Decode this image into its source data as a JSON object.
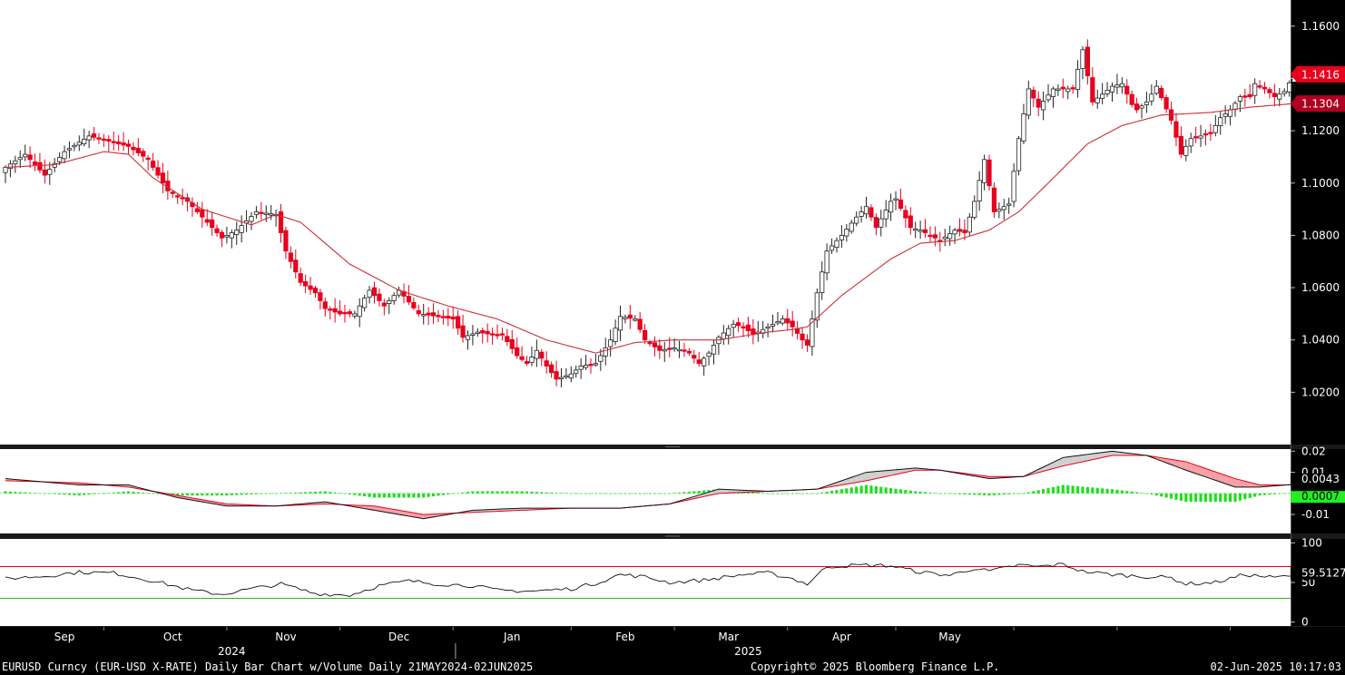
{
  "chart_data": [
    {
      "panel": "price",
      "type": "candlestick",
      "title": "",
      "ylim": [
        1.0,
        1.17
      ],
      "yticks": [
        "1.1600",
        "1.1400",
        "1.1200",
        "1.1000",
        "1.0800",
        "1.0600",
        "1.0400",
        "1.0200"
      ],
      "ytick_values": [
        1.16,
        1.14,
        1.12,
        1.1,
        1.08,
        1.06,
        1.04,
        1.02
      ],
      "grid": false,
      "candle_color": "#e8001c",
      "ma_color": "#c8303a",
      "price_anchors": [
        [
          0,
          1.106
        ],
        [
          4,
          1.111
        ],
        [
          8,
          1.103
        ],
        [
          12,
          1.112
        ],
        [
          17,
          1.118
        ],
        [
          21,
          1.116
        ],
        [
          25,
          1.114
        ],
        [
          29,
          1.109
        ],
        [
          33,
          1.097
        ],
        [
          37,
          1.093
        ],
        [
          40,
          1.087
        ],
        [
          44,
          1.079
        ],
        [
          47,
          1.082
        ],
        [
          51,
          1.089
        ],
        [
          55,
          1.088
        ],
        [
          57,
          1.074
        ],
        [
          60,
          1.062
        ],
        [
          63,
          1.058
        ],
        [
          65,
          1.052
        ],
        [
          68,
          1.05
        ],
        [
          71,
          1.05
        ],
        [
          74,
          1.059
        ],
        [
          77,
          1.053
        ],
        [
          80,
          1.059
        ],
        [
          84,
          1.05
        ],
        [
          88,
          1.049
        ],
        [
          91,
          1.048
        ],
        [
          93,
          1.041
        ],
        [
          96,
          1.043
        ],
        [
          99,
          1.042
        ],
        [
          101,
          1.042
        ],
        [
          104,
          1.034
        ],
        [
          106,
          1.031
        ],
        [
          108,
          1.036
        ],
        [
          110,
          1.03
        ],
        [
          112,
          1.025
        ],
        [
          115,
          1.027
        ],
        [
          117,
          1.03
        ],
        [
          120,
          1.031
        ],
        [
          123,
          1.04
        ],
        [
          125,
          1.049
        ],
        [
          128,
          1.048
        ],
        [
          130,
          1.04
        ],
        [
          133,
          1.036
        ],
        [
          136,
          1.037
        ],
        [
          139,
          1.035
        ],
        [
          141,
          1.031
        ],
        [
          143,
          1.035
        ],
        [
          145,
          1.041
        ],
        [
          148,
          1.046
        ],
        [
          150,
          1.045
        ],
        [
          152,
          1.042
        ],
        [
          155,
          1.045
        ],
        [
          158,
          1.048
        ],
        [
          160,
          1.045
        ],
        [
          162,
          1.04
        ],
        [
          163,
          1.038
        ],
        [
          165,
          1.058
        ],
        [
          167,
          1.074
        ],
        [
          170,
          1.08
        ],
        [
          173,
          1.087
        ],
        [
          175,
          1.091
        ],
        [
          177,
          1.083
        ],
        [
          180,
          1.093
        ],
        [
          181,
          1.094
        ],
        [
          184,
          1.083
        ],
        [
          186,
          1.082
        ],
        [
          188,
          1.08
        ],
        [
          190,
          1.078
        ],
        [
          193,
          1.082
        ],
        [
          195,
          1.081
        ],
        [
          197,
          1.093
        ],
        [
          199,
          1.109
        ],
        [
          201,
          1.089
        ],
        [
          204,
          1.092
        ],
        [
          206,
          1.117
        ],
        [
          208,
          1.136
        ],
        [
          210,
          1.129
        ],
        [
          213,
          1.136
        ],
        [
          215,
          1.136
        ],
        [
          217,
          1.136
        ],
        [
          219,
          1.151
        ],
        [
          221,
          1.131
        ],
        [
          223,
          1.134
        ],
        [
          225,
          1.137
        ],
        [
          227,
          1.138
        ],
        [
          229,
          1.13
        ],
        [
          230,
          1.128
        ],
        [
          232,
          1.131
        ],
        [
          234,
          1.137
        ],
        [
          237,
          1.124
        ],
        [
          239,
          1.111
        ],
        [
          241,
          1.117
        ],
        [
          243,
          1.118
        ],
        [
          245,
          1.119
        ],
        [
          247,
          1.125
        ],
        [
          249,
          1.128
        ],
        [
          251,
          1.133
        ],
        [
          253,
          1.133
        ],
        [
          254,
          1.138
        ],
        [
          256,
          1.136
        ],
        [
          258,
          1.133
        ],
        [
          260,
          1.135
        ],
        [
          262,
          1.1416
        ]
      ],
      "moving_average_anchors": [
        [
          0,
          1.106
        ],
        [
          10,
          1.107
        ],
        [
          20,
          1.112
        ],
        [
          25,
          1.111
        ],
        [
          30,
          1.102
        ],
        [
          40,
          1.09
        ],
        [
          50,
          1.084
        ],
        [
          55,
          1.088
        ],
        [
          60,
          1.085
        ],
        [
          70,
          1.069
        ],
        [
          80,
          1.059
        ],
        [
          90,
          1.053
        ],
        [
          100,
          1.048
        ],
        [
          110,
          1.04
        ],
        [
          120,
          1.035
        ],
        [
          128,
          1.039
        ],
        [
          136,
          1.04
        ],
        [
          145,
          1.04
        ],
        [
          155,
          1.043
        ],
        [
          160,
          1.044
        ],
        [
          163,
          1.045
        ],
        [
          170,
          1.057
        ],
        [
          180,
          1.071
        ],
        [
          186,
          1.077
        ],
        [
          193,
          1.078
        ],
        [
          200,
          1.082
        ],
        [
          206,
          1.089
        ],
        [
          212,
          1.1
        ],
        [
          220,
          1.115
        ],
        [
          227,
          1.122
        ],
        [
          235,
          1.126
        ],
        [
          245,
          1.127
        ],
        [
          253,
          1.129
        ],
        [
          262,
          1.1304
        ]
      ],
      "last_price_label": "1.1416",
      "last_price_color": "#e8001c",
      "ma_value_label": "1.1304",
      "ma_value_color": "#b00020"
    },
    {
      "panel": "macd",
      "type": "line+histogram",
      "ylim": [
        -0.019,
        0.021
      ],
      "yticks": [
        "0.02",
        "0.01",
        "-0.01"
      ],
      "ytick_values": [
        0.02,
        0.01,
        -0.01
      ],
      "macd_anchors": [
        [
          0,
          0.007
        ],
        [
          15,
          0.004
        ],
        [
          25,
          0.004
        ],
        [
          35,
          -0.002
        ],
        [
          45,
          -0.006
        ],
        [
          55,
          -0.006
        ],
        [
          65,
          -0.004
        ],
        [
          75,
          -0.008
        ],
        [
          85,
          -0.012
        ],
        [
          95,
          -0.008
        ],
        [
          105,
          -0.007
        ],
        [
          115,
          -0.007
        ],
        [
          125,
          -0.007
        ],
        [
          135,
          -0.005
        ],
        [
          145,
          0.002
        ],
        [
          155,
          0.001
        ],
        [
          165,
          0.002
        ],
        [
          175,
          0.01
        ],
        [
          185,
          0.012
        ],
        [
          190,
          0.011
        ],
        [
          200,
          0.007
        ],
        [
          207,
          0.008
        ],
        [
          215,
          0.017
        ],
        [
          225,
          0.02
        ],
        [
          232,
          0.018
        ],
        [
          240,
          0.011
        ],
        [
          250,
          0.003
        ],
        [
          255,
          0.003
        ],
        [
          262,
          0.0043
        ]
      ],
      "signal_anchors": [
        [
          0,
          0.006
        ],
        [
          15,
          0.005
        ],
        [
          25,
          0.003
        ],
        [
          35,
          -0.001
        ],
        [
          45,
          -0.005
        ],
        [
          55,
          -0.006
        ],
        [
          65,
          -0.005
        ],
        [
          75,
          -0.006
        ],
        [
          85,
          -0.01
        ],
        [
          95,
          -0.009
        ],
        [
          105,
          -0.008
        ],
        [
          115,
          -0.007
        ],
        [
          125,
          -0.007
        ],
        [
          135,
          -0.005
        ],
        [
          145,
          0.0
        ],
        [
          155,
          0.001
        ],
        [
          165,
          0.002
        ],
        [
          175,
          0.006
        ],
        [
          185,
          0.011
        ],
        [
          190,
          0.011
        ],
        [
          200,
          0.008
        ],
        [
          207,
          0.008
        ],
        [
          215,
          0.013
        ],
        [
          225,
          0.018
        ],
        [
          232,
          0.018
        ],
        [
          240,
          0.015
        ],
        [
          250,
          0.007
        ],
        [
          255,
          0.004
        ],
        [
          262,
          0.004
        ]
      ],
      "macd_color": "#111111",
      "signal_color": "#e8001c",
      "histogram_color": "#22dd22",
      "macd_value_label": "0.0043",
      "histogram_value_label": "0.0007"
    },
    {
      "panel": "rsi",
      "type": "line",
      "ylim": [
        -5,
        105
      ],
      "yticks": [
        "100",
        "50",
        "0"
      ],
      "ytick_values": [
        100,
        50,
        0
      ],
      "overbought": 70,
      "oversold": 30,
      "overbought_color": "#e8001c",
      "oversold_color": "#22bb22",
      "rsi_anchors": [
        [
          0,
          55
        ],
        [
          8,
          58
        ],
        [
          15,
          63
        ],
        [
          22,
          62
        ],
        [
          30,
          52
        ],
        [
          38,
          40
        ],
        [
          44,
          35
        ],
        [
          50,
          42
        ],
        [
          56,
          48
        ],
        [
          63,
          36
        ],
        [
          70,
          34
        ],
        [
          76,
          46
        ],
        [
          82,
          52
        ],
        [
          88,
          48
        ],
        [
          95,
          46
        ],
        [
          100,
          40
        ],
        [
          107,
          39
        ],
        [
          115,
          42
        ],
        [
          120,
          49
        ],
        [
          125,
          60
        ],
        [
          130,
          57
        ],
        [
          135,
          50
        ],
        [
          142,
          53
        ],
        [
          150,
          60
        ],
        [
          155,
          62
        ],
        [
          160,
          55
        ],
        [
          163,
          48
        ],
        [
          167,
          70
        ],
        [
          175,
          72
        ],
        [
          180,
          71
        ],
        [
          186,
          63
        ],
        [
          192,
          59
        ],
        [
          197,
          68
        ],
        [
          200,
          64
        ],
        [
          206,
          72
        ],
        [
          210,
          70
        ],
        [
          215,
          73
        ],
        [
          219,
          64
        ],
        [
          225,
          60
        ],
        [
          230,
          58
        ],
        [
          237,
          56
        ],
        [
          240,
          48
        ],
        [
          246,
          50
        ],
        [
          252,
          60
        ],
        [
          258,
          56
        ],
        [
          262,
          59.5127
        ]
      ],
      "rsi_value_label": "59.5127"
    }
  ],
  "x_axis": {
    "months": [
      {
        "label": "Sep",
        "index": 12
      },
      {
        "label": "Oct",
        "index": 34
      },
      {
        "label": "Nov",
        "index": 57
      },
      {
        "label": "Dec",
        "index": 80
      },
      {
        "label": "Jan",
        "index": 103
      },
      {
        "label": "Feb",
        "index": 126
      },
      {
        "label": "Mar",
        "index": 147
      },
      {
        "label": "Apr",
        "index": 170
      },
      {
        "label": "May",
        "index": 192
      }
    ],
    "month_boundary_indices": [
      20,
      45,
      68,
      91,
      115,
      136,
      159,
      181,
      205,
      226,
      249
    ],
    "years": [
      {
        "label": "2024",
        "index": 46
      },
      {
        "label": "2025",
        "index": 151
      }
    ],
    "year_divider_index": 91.5
  },
  "footer": {
    "left": "EURUSD Curncy (EUR-USD X-RATE) Daily Bar Chart w/Volume  Daily 21MAY2024-02JUN2025",
    "center": "Copyright© 2025 Bloomberg Finance L.P.",
    "right": "02-Jun-2025 10:17:03"
  }
}
